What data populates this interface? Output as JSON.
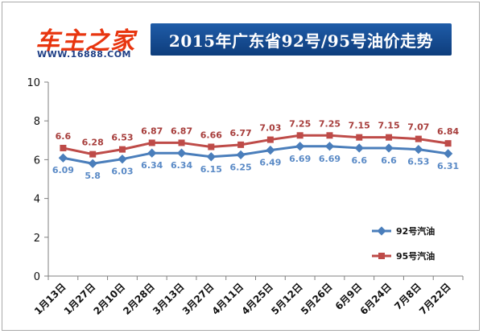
{
  "logo": {
    "text": "车主之家",
    "sub": "WWW.16888.COM"
  },
  "chart_data": {
    "type": "line",
    "title": "2015年广东省92号/95号油价走势",
    "categories": [
      "1月13日",
      "1月27日",
      "2月10日",
      "2月28日",
      "3月13日",
      "3月27日",
      "4月11日",
      "4月25日",
      "5月12日",
      "5月26日",
      "6月9日",
      "6月24日",
      "7月8日",
      "7月22日"
    ],
    "ylim": [
      0,
      10
    ],
    "yticks": [
      "0",
      "2",
      "4",
      "6",
      "8",
      "10"
    ],
    "grid": false,
    "legend": "right",
    "series": [
      {
        "name": "92号汽油",
        "color": "#4a7ebb",
        "values": [
          6.09,
          5.8,
          6.03,
          6.34,
          6.34,
          6.15,
          6.25,
          6.49,
          6.69,
          6.69,
          6.6,
          6.6,
          6.53,
          6.31
        ],
        "labels": [
          "6.09",
          "5.8",
          "6.03",
          "6.34",
          "6.34",
          "6.15",
          "6.25",
          "6.49",
          "6.69",
          "6.69",
          "6.6",
          "6.6",
          "6.53",
          "6.31"
        ]
      },
      {
        "name": "95号汽油",
        "color": "#be4b48",
        "values": [
          6.6,
          6.28,
          6.53,
          6.87,
          6.87,
          6.66,
          6.77,
          7.03,
          7.25,
          7.25,
          7.15,
          7.15,
          7.07,
          6.84
        ],
        "labels": [
          "6.6",
          "6.28",
          "6.53",
          "6.87",
          "6.87",
          "6.66",
          "6.77",
          "7.03",
          "7.25",
          "7.25",
          "7.15",
          "7.15",
          "7.07",
          "6.84"
        ]
      }
    ]
  }
}
